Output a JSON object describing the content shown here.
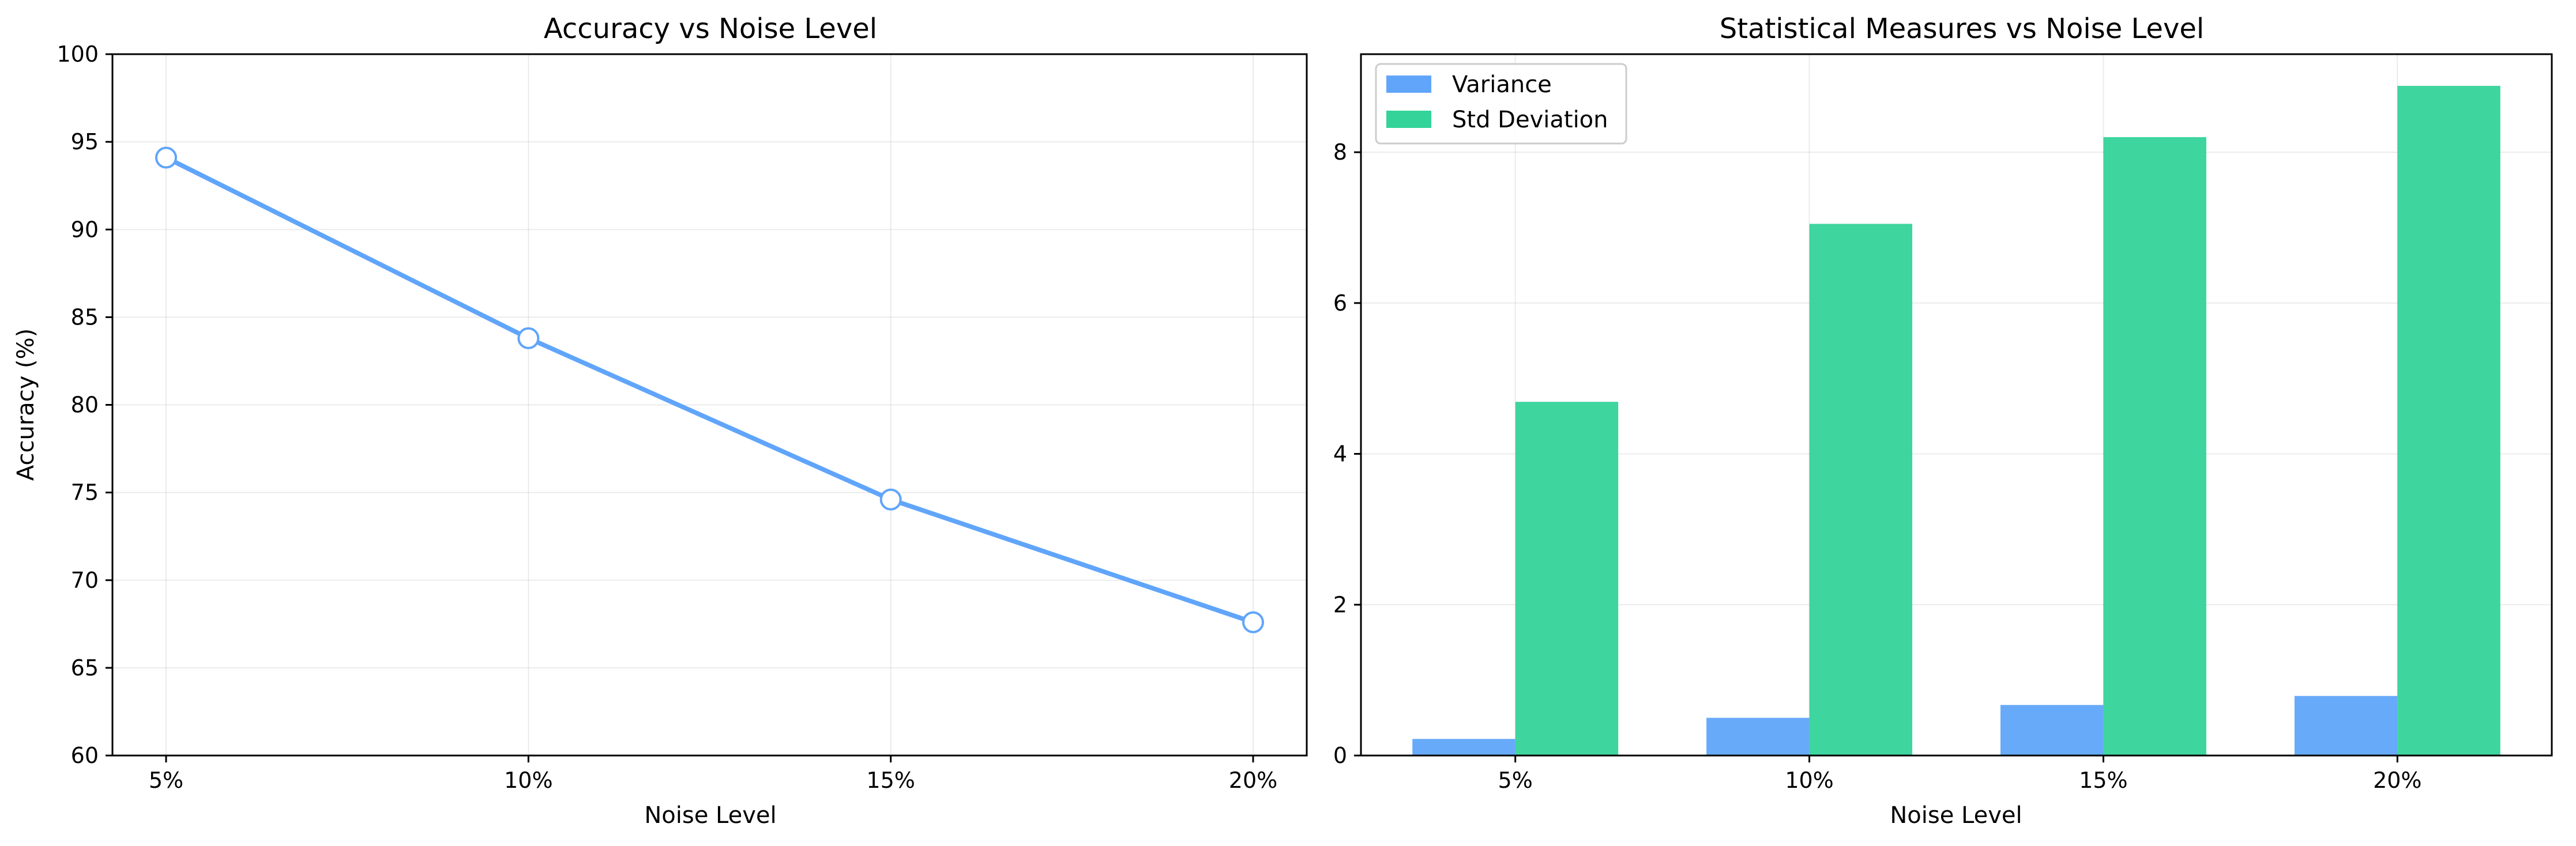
{
  "chart_data": [
    {
      "type": "line",
      "title": "Accuracy vs Noise Level",
      "xlabel": "Noise Level",
      "ylabel": "Accuracy (%)",
      "categories": [
        "5%",
        "10%",
        "15%",
        "20%"
      ],
      "series": [
        {
          "values": [
            94.1,
            83.8,
            74.6,
            67.6
          ],
          "color": "#60a5fa",
          "marker": "hollow-circle"
        }
      ],
      "ylim": [
        60,
        100
      ],
      "yticks": [
        60,
        65,
        70,
        75,
        80,
        85,
        90,
        95,
        100
      ],
      "grid": true,
      "legend": "none"
    },
    {
      "type": "bar",
      "title": "Statistical Measures vs Noise Level",
      "xlabel": "Noise Level",
      "ylabel": "",
      "categories": [
        "5%",
        "10%",
        "15%",
        "20%"
      ],
      "series": [
        {
          "name": "Variance",
          "values": [
            0.22,
            0.5,
            0.67,
            0.79
          ],
          "color": "#60a5fa"
        },
        {
          "name": "Std Deviation",
          "values": [
            4.69,
            7.05,
            8.2,
            8.88
          ],
          "color": "#34d399"
        }
      ],
      "ylim": [
        0,
        9.3
      ],
      "yticks": [
        0,
        2,
        4,
        6,
        8
      ],
      "grid": true,
      "legend": "top-left"
    }
  ]
}
